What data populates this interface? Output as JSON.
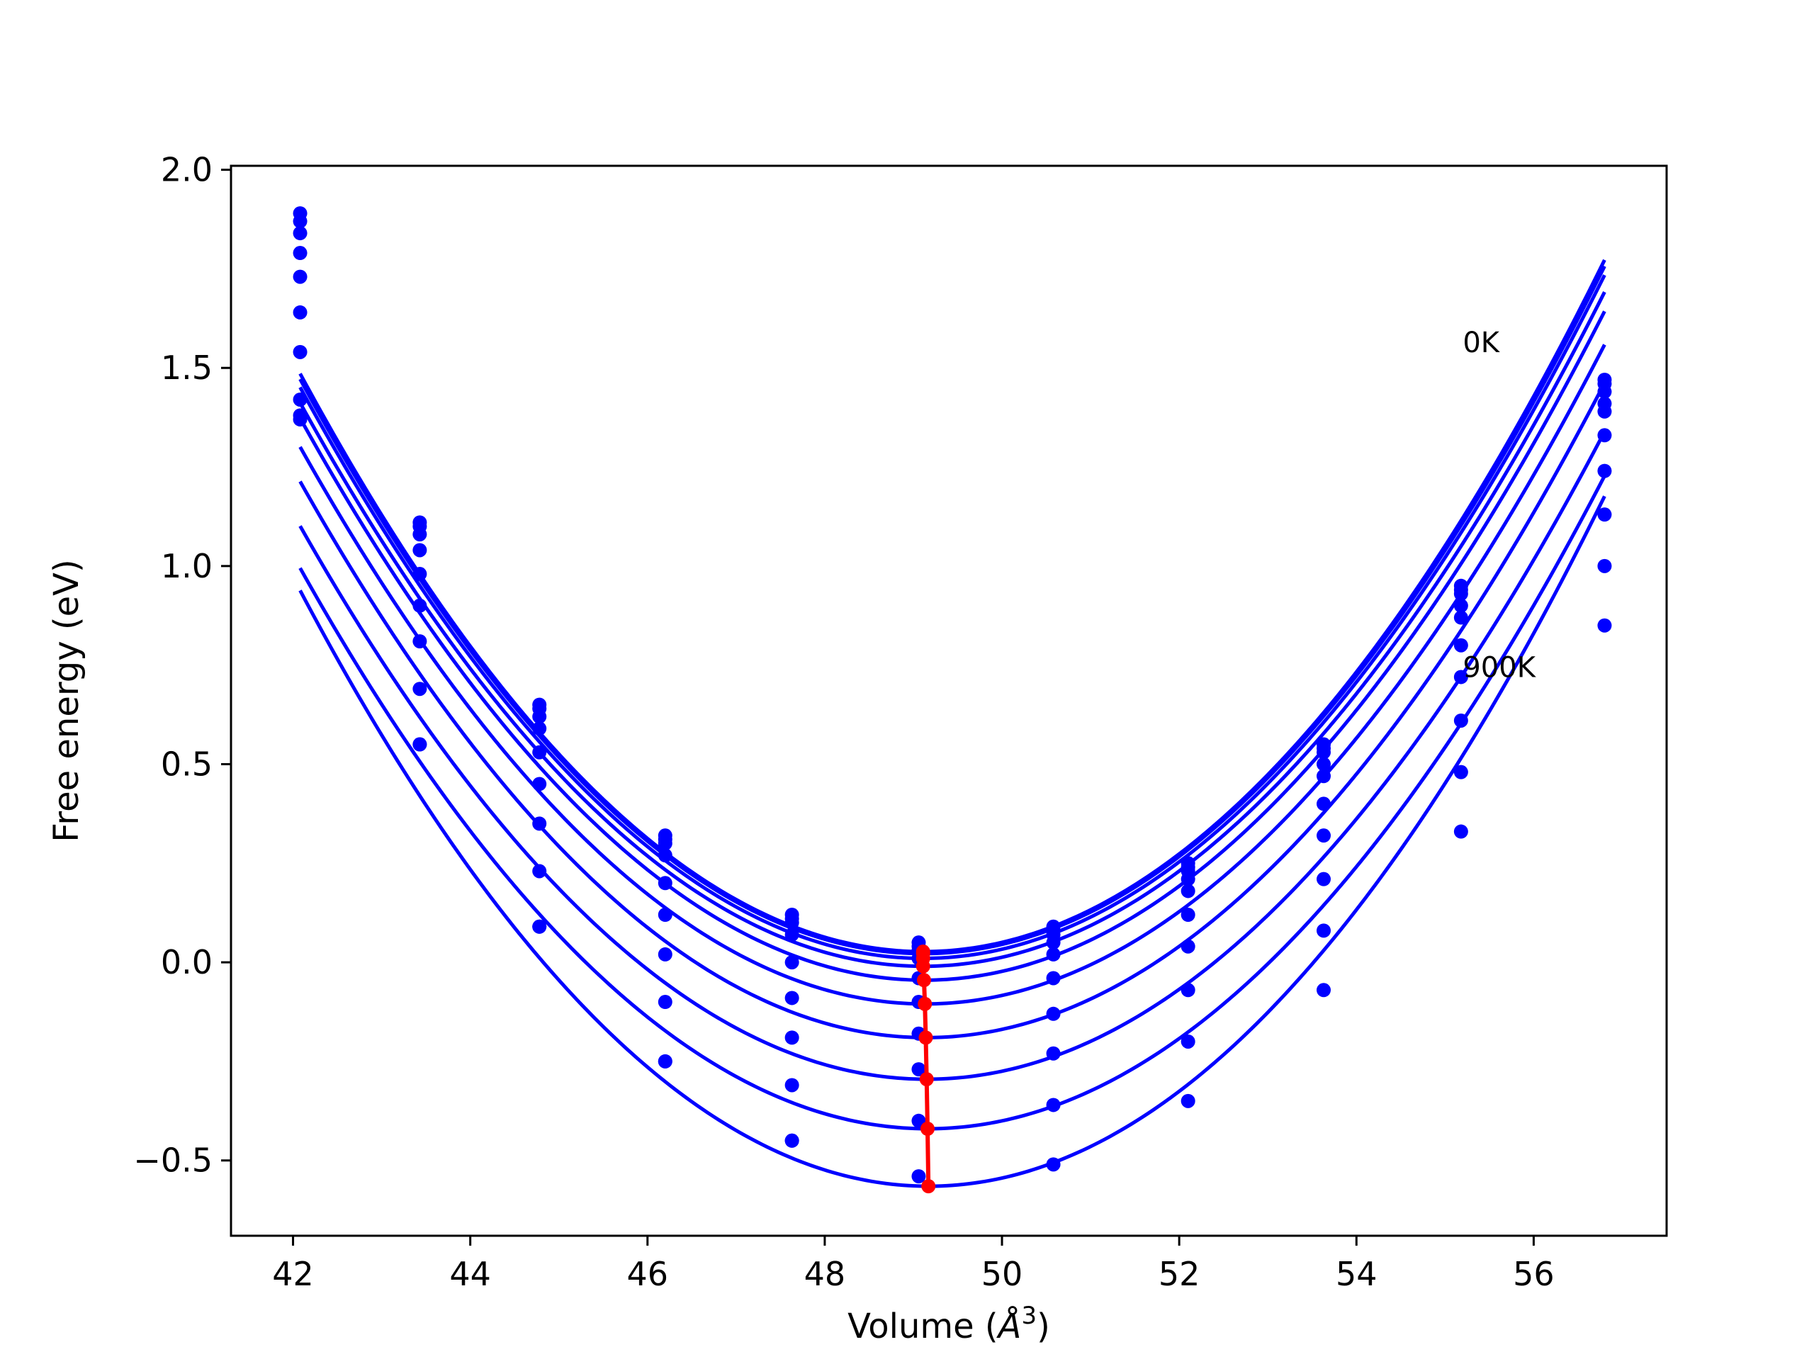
{
  "chart_data": {
    "type": "line",
    "title": "",
    "xlabel": "Volume ($\\AA^3$)",
    "xlabel_parts": {
      "prefix": "Volume (",
      "symbol": "Å",
      "sup": "3",
      "suffix": ")"
    },
    "ylabel": "Free energy (eV)",
    "xlim": [
      41.3,
      57.5
    ],
    "ylim": [
      -0.69,
      2.01
    ],
    "xticks": [
      42,
      44,
      46,
      48,
      50,
      52,
      54,
      56
    ],
    "xtick_labels": [
      "42",
      "44",
      "46",
      "48",
      "50",
      "52",
      "54",
      "56"
    ],
    "yticks": [
      -0.5,
      0.0,
      0.5,
      1.0,
      1.5,
      2.0
    ],
    "ytick_labels": [
      "−0.5",
      "0.0",
      "0.5",
      "1.0",
      "1.5",
      "2.0"
    ],
    "grid": false,
    "legend": "none",
    "curve_color": "#0000ff",
    "min_line_color": "#ff0000",
    "x_points": [
      42.08,
      43.43,
      44.78,
      46.2,
      47.63,
      49.06,
      50.58,
      52.1,
      53.63,
      55.18,
      56.8
    ],
    "series": [
      {
        "label": "0K",
        "emin": 0.027,
        "vmin": 49.11,
        "y": [
          1.89,
          1.11,
          0.65,
          0.32,
          0.12,
          0.05,
          0.09,
          0.25,
          0.55,
          0.95,
          1.47
        ]
      },
      {
        "emin": 0.022,
        "vmin": 49.11,
        "y": [
          1.87,
          1.1,
          0.64,
          0.31,
          0.11,
          0.04,
          0.08,
          0.24,
          0.54,
          0.94,
          1.46
        ]
      },
      {
        "emin": 0.01,
        "vmin": 49.11,
        "y": [
          1.84,
          1.08,
          0.62,
          0.3,
          0.1,
          0.03,
          0.07,
          0.23,
          0.53,
          0.93,
          1.44
        ]
      },
      {
        "emin": -0.01,
        "vmin": 49.11,
        "y": [
          1.79,
          1.04,
          0.59,
          0.27,
          0.07,
          0.01,
          0.05,
          0.21,
          0.5,
          0.9,
          1.41
        ]
      },
      {
        "emin": -0.045,
        "vmin": 49.12,
        "y": [
          1.73,
          0.98,
          0.53,
          0.2,
          0.0,
          -0.04,
          0.02,
          0.18,
          0.47,
          0.87,
          1.39
        ]
      },
      {
        "emin": -0.105,
        "vmin": 49.13,
        "y": [
          1.64,
          0.9,
          0.45,
          0.12,
          -0.09,
          -0.1,
          -0.04,
          0.12,
          0.4,
          0.8,
          1.33
        ]
      },
      {
        "emin": -0.19,
        "vmin": 49.14,
        "y": [
          1.54,
          0.81,
          0.35,
          0.02,
          -0.19,
          -0.18,
          -0.13,
          0.04,
          0.32,
          0.72,
          1.24
        ]
      },
      {
        "emin": -0.295,
        "vmin": 49.15,
        "y": [
          1.42,
          0.69,
          0.23,
          -0.1,
          -0.31,
          -0.27,
          -0.23,
          -0.07,
          0.21,
          0.61,
          1.13
        ]
      },
      {
        "emin": -0.42,
        "vmin": 49.16,
        "y": [
          1.38,
          0.55,
          0.09,
          -0.25,
          -0.45,
          -0.4,
          -0.36,
          -0.2,
          0.08,
          0.48,
          1.0
        ]
      },
      {
        "label": "900K",
        "emin": -0.565,
        "vmin": 49.17,
        "y": [
          1.37,
          0.55,
          0.09,
          -0.25,
          -0.45,
          -0.54,
          -0.51,
          -0.35,
          -0.07,
          0.33,
          0.85
        ]
      }
    ],
    "annotations": [
      {
        "text": "0K",
        "x": 55.2,
        "y": 1.54
      },
      {
        "text": "900K",
        "x": 55.2,
        "y": 0.72
      }
    ]
  }
}
